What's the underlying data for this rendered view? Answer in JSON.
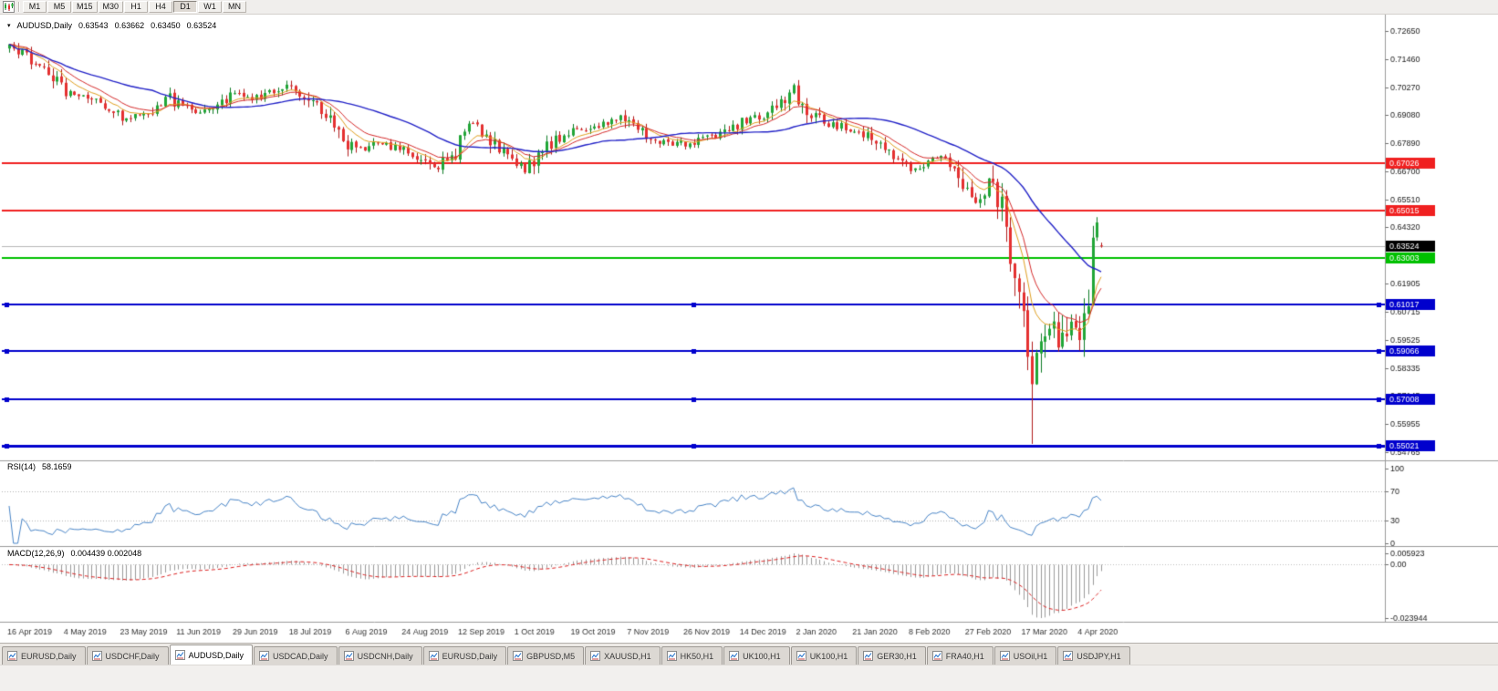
{
  "toolbar": {
    "timeframes": [
      "M1",
      "M5",
      "M15",
      "M30",
      "H1",
      "H4",
      "D1",
      "W1",
      "MN"
    ],
    "active_timeframe": "D1"
  },
  "legend": {
    "symbol": "AUDUSD,Daily",
    "open": "0.63543",
    "high": "0.63662",
    "low": "0.63450",
    "close": "0.63524"
  },
  "chart_data": {
    "type": "candlestick",
    "symbol": "AUDUSD",
    "timeframe": "Daily",
    "quote": {
      "open": 0.63543,
      "high": 0.63662,
      "low": 0.6345,
      "close": 0.63524
    },
    "price_axis": {
      "min": 0.544,
      "max": 0.729,
      "ticks": [
        "0.72650",
        "0.71460",
        "0.70270",
        "0.69080",
        "0.67890",
        "0.66700",
        "0.65510",
        "0.64320",
        "0.61905",
        "0.60715",
        "0.59525",
        "0.58335",
        "0.57145",
        "0.55955",
        "0.54765"
      ]
    },
    "date_labels": [
      "16 Apr 2019",
      "4 May 2019",
      "23 May 2019",
      "11 Jun 2019",
      "29 Jun 2019",
      "18 Jul 2019",
      "6 Aug 2019",
      "24 Aug 2019",
      "12 Sep 2019",
      "1 Oct 2019",
      "19 Oct 2019",
      "7 Nov 2019",
      "26 Nov 2019",
      "14 Dec 2019",
      "2 Jan 2020",
      "21 Jan 2020",
      "8 Feb 2020",
      "27 Feb 2020",
      "17 Mar 2020",
      "4 Apr 2020"
    ],
    "candles_per_label": 13,
    "num_candles": 253,
    "candle_colors": {
      "up": "#21a637",
      "up_wick": "#0e7d26",
      "down": "#e53030",
      "down_wick": "#b11b1b"
    },
    "trajectory": [
      [
        0,
        0.7195
      ],
      [
        4,
        0.716
      ],
      [
        9,
        0.71
      ],
      [
        13,
        0.701
      ],
      [
        18,
        0.699
      ],
      [
        26,
        0.69
      ],
      [
        31,
        0.691
      ],
      [
        36,
        0.699
      ],
      [
        39,
        0.6955
      ],
      [
        44,
        0.6925
      ],
      [
        52,
        0.7
      ],
      [
        57,
        0.698
      ],
      [
        62,
        0.7025
      ],
      [
        65,
        0.704
      ],
      [
        69,
        0.6975
      ],
      [
        73,
        0.6925
      ],
      [
        78,
        0.679
      ],
      [
        81,
        0.676
      ],
      [
        85,
        0.6785
      ],
      [
        91,
        0.676
      ],
      [
        95,
        0.673
      ],
      [
        99,
        0.669
      ],
      [
        102,
        0.673
      ],
      [
        104,
        0.6845
      ],
      [
        108,
        0.6865
      ],
      [
        112,
        0.679
      ],
      [
        117,
        0.6705
      ],
      [
        119,
        0.668
      ],
      [
        123,
        0.6765
      ],
      [
        127,
        0.6815
      ],
      [
        130,
        0.6845
      ],
      [
        136,
        0.6865
      ],
      [
        141,
        0.69
      ],
      [
        143,
        0.687
      ],
      [
        147,
        0.682
      ],
      [
        152,
        0.679
      ],
      [
        156,
        0.6785
      ],
      [
        161,
        0.6805
      ],
      [
        165,
        0.6835
      ],
      [
        169,
        0.688
      ],
      [
        174,
        0.6905
      ],
      [
        178,
        0.6965
      ],
      [
        181,
        0.702
      ],
      [
        184,
        0.6935
      ],
      [
        188,
        0.688
      ],
      [
        195,
        0.684
      ],
      [
        199,
        0.681
      ],
      [
        203,
        0.675
      ],
      [
        208,
        0.6685
      ],
      [
        212,
        0.671
      ],
      [
        216,
        0.6725
      ],
      [
        219,
        0.6675
      ],
      [
        221,
        0.658
      ],
      [
        223,
        0.654
      ],
      [
        226,
        0.663
      ],
      [
        228,
        0.656
      ],
      [
        230,
        0.645
      ],
      [
        232,
        0.625
      ],
      [
        234,
        0.602
      ],
      [
        236,
        0.578
      ],
      [
        238,
        0.59
      ],
      [
        240,
        0.601
      ],
      [
        242,
        0.593
      ],
      [
        244,
        0.5985
      ],
      [
        246,
        0.605
      ],
      [
        247,
        0.6
      ],
      [
        249,
        0.617
      ],
      [
        250,
        0.633
      ],
      [
        251,
        0.643
      ],
      [
        252,
        0.63524
      ]
    ],
    "key_low": {
      "index": 236,
      "price": 0.551
    },
    "key_high": {
      "index": 251,
      "price": 0.6455
    },
    "levels": [
      {
        "value": 0.67026,
        "label": "0.67026",
        "color": "#f02020",
        "width": 2,
        "handles": false
      },
      {
        "value": 0.65015,
        "label": "0.65015",
        "color": "#f02020",
        "width": 2,
        "handles": false
      },
      {
        "value": 0.63003,
        "label": "0.63003",
        "color": "#00c000",
        "width": 2,
        "handles": false
      },
      {
        "value": 0.61017,
        "label": "0.61017",
        "color": "#0000cd",
        "width": 2,
        "handles": true
      },
      {
        "value": 0.59066,
        "label": "0.59066",
        "color": "#0000cd",
        "width": 2,
        "handles": true
      },
      {
        "value": 0.57008,
        "label": "0.57008",
        "color": "#0000cd",
        "width": 2,
        "handles": true
      },
      {
        "value": 0.55021,
        "label": "0.55021",
        "color": "#0000cd",
        "width": 3,
        "handles": true
      }
    ],
    "bid": {
      "value": 0.63524,
      "label": "0.63524",
      "line_color": "#b8b8b8",
      "badge_color": "#000000"
    },
    "moving_averages": [
      {
        "name": "fast-ema",
        "period": 8,
        "method": "ema",
        "color": "#e0a020"
      },
      {
        "name": "mid-ema",
        "period": 13,
        "method": "ema",
        "color": "#d62b2b"
      },
      {
        "name": "slow-sma",
        "period": 34,
        "method": "sma",
        "color": "#2424c8"
      }
    ],
    "indicators": {
      "rsi": {
        "label": "RSI(14)",
        "value": "58.1659",
        "period": 14,
        "scale": [
          "100",
          "70",
          "30",
          "0"
        ],
        "levels": [
          70,
          30
        ],
        "color": "#4a86c8"
      },
      "macd": {
        "label": "MACD(12,26,9)",
        "values": "0.004439 0.002048",
        "fast": 12,
        "slow": 26,
        "signal": 9,
        "scale_max": "0.005923",
        "scale_zero": "0.00",
        "scale_min": "-0.023944",
        "hist_color": "#9c9c9c",
        "signal_color": "#dd2222"
      }
    }
  },
  "tabs": {
    "active_index": 2,
    "items": [
      {
        "label": "EURUSD,Daily"
      },
      {
        "label": "USDCHF,Daily"
      },
      {
        "label": "AUDUSD,Daily"
      },
      {
        "label": "USDCAD,Daily"
      },
      {
        "label": "USDCNH,Daily"
      },
      {
        "label": "EURUSD,Daily"
      },
      {
        "label": "GBPUSD,M5"
      },
      {
        "label": "XAUUSD,H1"
      },
      {
        "label": "HK50,H1"
      },
      {
        "label": "UK100,H1"
      },
      {
        "label": "UK100,H1"
      },
      {
        "label": "GER30,H1"
      },
      {
        "label": "FRA40,H1"
      },
      {
        "label": "USOil,H1"
      },
      {
        "label": "USDJPY,H1"
      }
    ]
  }
}
